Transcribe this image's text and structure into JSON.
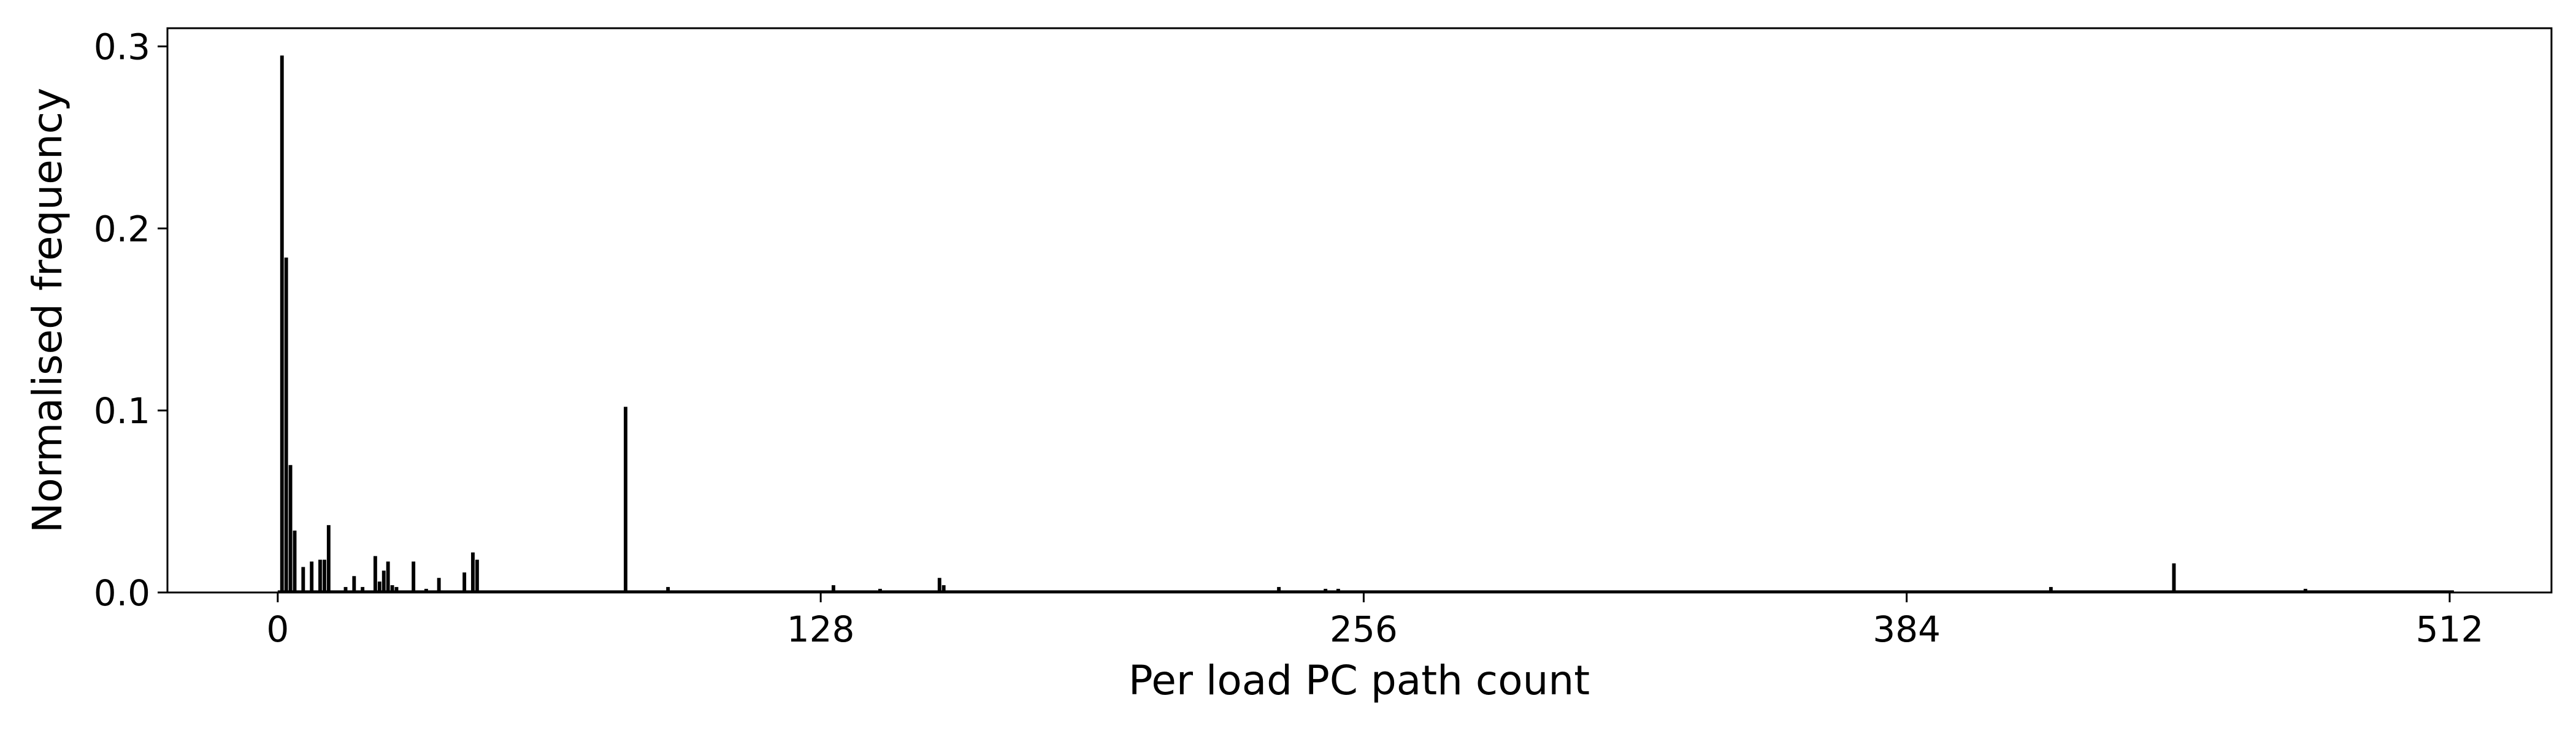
{
  "chart_data": {
    "type": "bar",
    "title": "",
    "xlabel": "Per load PC path count",
    "ylabel": "Normalised frequency",
    "xlim": [
      -26,
      536
    ],
    "ylim": [
      0,
      0.31
    ],
    "xticks": [
      0,
      128,
      256,
      384,
      512
    ],
    "yticks": [
      0.0,
      0.1,
      0.2,
      0.3
    ],
    "ytick_labels": [
      "0.0",
      "0.1",
      "0.2",
      "0.3"
    ],
    "grid": false,
    "legend": "none",
    "bar_color": "#000000",
    "x": [
      1,
      2,
      3,
      4,
      6,
      8,
      10,
      11,
      12,
      16,
      18,
      20,
      23,
      24,
      25,
      26,
      27,
      28,
      32,
      35,
      38,
      44,
      46,
      47,
      82,
      92,
      131,
      142,
      156,
      157,
      236,
      247,
      250,
      418,
      447,
      478
    ],
    "values": [
      0.295,
      0.184,
      0.07,
      0.034,
      0.014,
      0.017,
      0.018,
      0.018,
      0.037,
      0.003,
      0.009,
      0.003,
      0.02,
      0.006,
      0.012,
      0.017,
      0.004,
      0.003,
      0.017,
      0.002,
      0.008,
      0.011,
      0.022,
      0.018,
      0.102,
      0.003,
      0.004,
      0.002,
      0.008,
      0.004,
      0.003,
      0.002,
      0.002,
      0.003,
      0.016,
      0.002
    ]
  }
}
